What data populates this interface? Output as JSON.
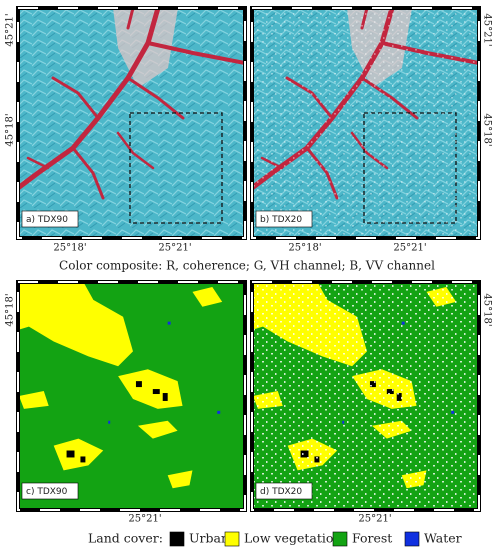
{
  "panels": [
    {
      "label": "a) TDX90"
    },
    {
      "label": "b) TDX20"
    },
    {
      "label": "c) TDX90"
    },
    {
      "label": "d) TDX20"
    }
  ],
  "top_row": {
    "lat_ticks": [
      "45°21'",
      "45°18'"
    ],
    "lon_ticks": [
      "25°18'",
      "25°21'"
    ]
  },
  "caption": "Color composite: R, coherence; G, VH channel; B, VV channel",
  "bottom_row": {
    "lat_ticks": [
      "45°18'"
    ],
    "lon_ticks": [
      "25°21'"
    ]
  },
  "legend": {
    "title": "Land cover:",
    "items": [
      {
        "label": "Urban",
        "color": "#000000"
      },
      {
        "label": "Low vegetation",
        "color": "#ffff00"
      },
      {
        "label": "Forest",
        "color": "#13a313"
      },
      {
        "label": "Water",
        "color": "#1030e0"
      }
    ]
  }
}
